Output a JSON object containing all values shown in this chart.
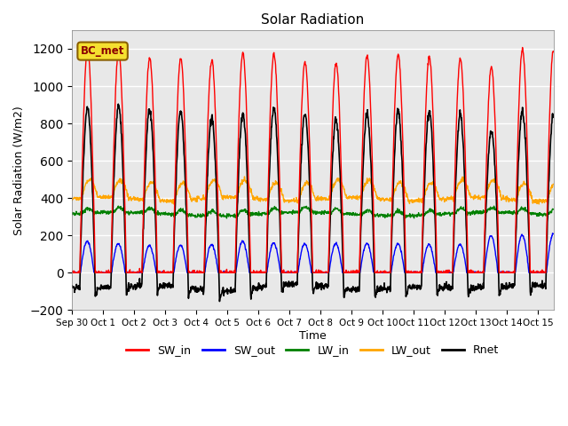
{
  "title": "Solar Radiation",
  "xlabel": "Time",
  "ylabel": "Solar Radiation (W/m2)",
  "ylim": [
    -200,
    1300
  ],
  "yticks": [
    -200,
    0,
    200,
    400,
    600,
    800,
    1000,
    1200
  ],
  "annotation_text": "BC_met",
  "colors": {
    "SW_in": "red",
    "SW_out": "blue",
    "LW_in": "green",
    "LW_out": "orange",
    "Rnet": "black"
  },
  "tick_labels": [
    "Sep 30",
    "Oct 1",
    "Oct 2",
    "Oct 3",
    "Oct 4",
    "Oct 5",
    "Oct 6",
    "Oct 7",
    "Oct 8",
    "Oct 9",
    "Oct 10",
    "Oct 11",
    "Oct 12",
    "Oct 13",
    "Oct 14",
    "Oct 15"
  ],
  "tick_positions": [
    0,
    1,
    2,
    3,
    4,
    5,
    6,
    7,
    8,
    9,
    10,
    11,
    12,
    13,
    14,
    15
  ],
  "num_days": 15.5,
  "dt_hours": 0.25,
  "sw_peaks": [
    1200,
    1190,
    1150,
    1150,
    1140,
    1180,
    1170,
    1130,
    1120,
    1160,
    1165,
    1155,
    1145,
    1100,
    1195,
    1200
  ],
  "sw_out_peaks": [
    170,
    155,
    145,
    148,
    152,
    170,
    160,
    155,
    155,
    158,
    155,
    152,
    152,
    200,
    205,
    208
  ],
  "lw_in_base": 315,
  "lw_out_base": 395,
  "plot_bg_color": "#e8e8e8",
  "grid_color": "white",
  "figsize": [
    6.4,
    4.8
  ],
  "dpi": 100
}
